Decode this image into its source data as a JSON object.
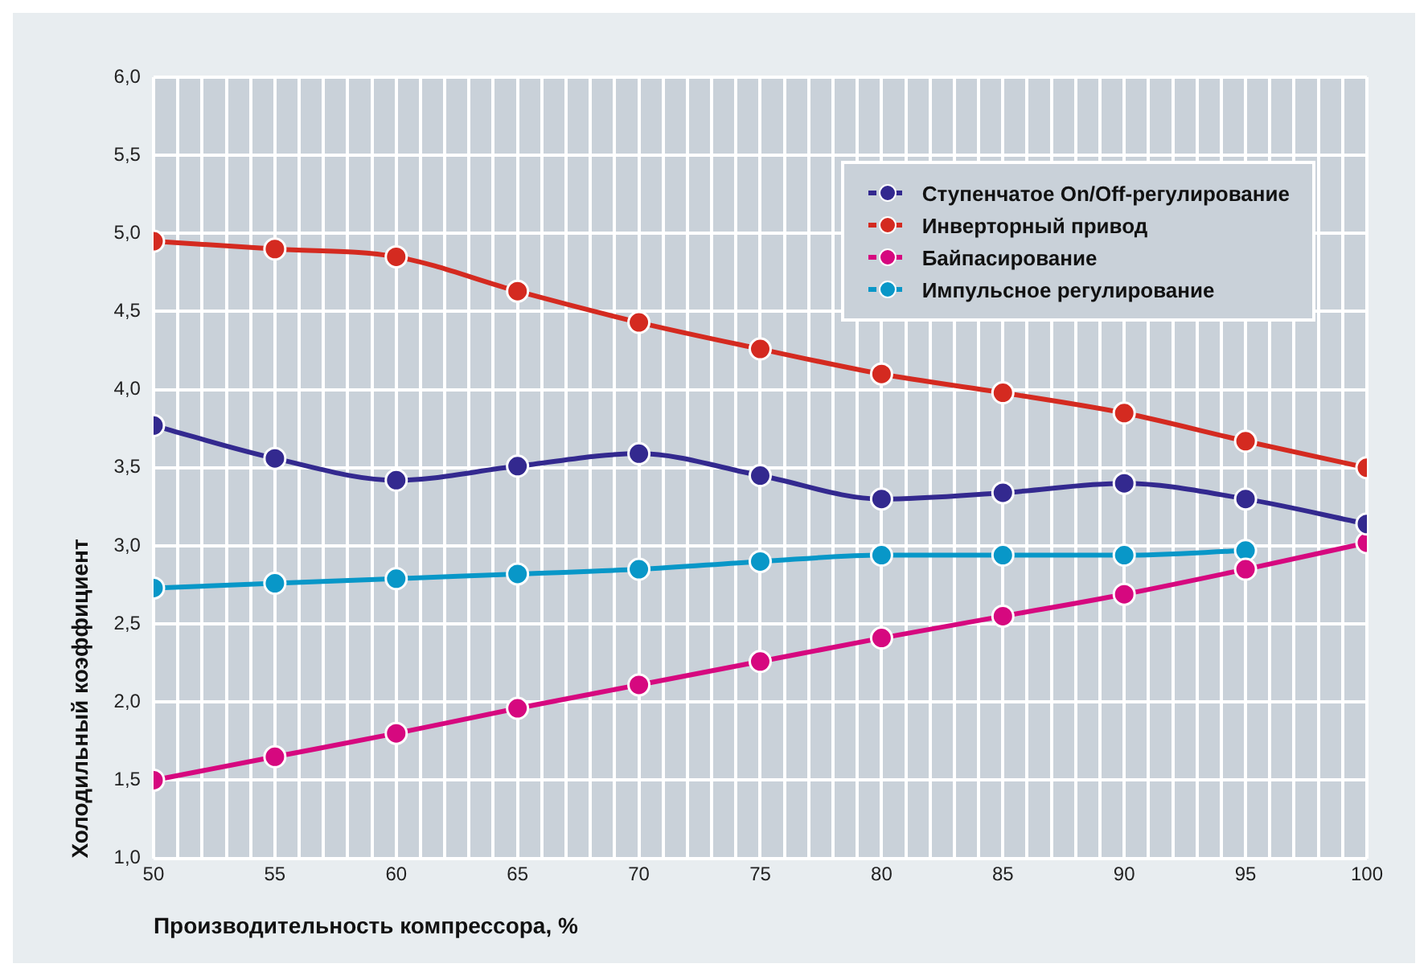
{
  "chart_data": {
    "type": "line",
    "xlabel": "Производительность компрессора, %",
    "ylabel": "Холодильный коэффициент",
    "x": [
      50,
      55,
      60,
      65,
      70,
      75,
      80,
      85,
      90,
      95,
      100
    ],
    "series": [
      {
        "name": "Ступенчатое On/Off-регулирование",
        "color": "#33298f",
        "values": [
          3.77,
          3.56,
          3.42,
          3.51,
          3.59,
          3.45,
          3.3,
          3.34,
          3.4,
          3.3,
          3.14
        ]
      },
      {
        "name": "Инверторный привод",
        "color": "#d42a20",
        "values": [
          4.95,
          4.9,
          4.85,
          4.63,
          4.43,
          4.26,
          4.1,
          3.98,
          3.85,
          3.67,
          3.5
        ]
      },
      {
        "name": "Байпасирование",
        "color": "#d6087f",
        "values": [
          1.5,
          1.65,
          1.8,
          1.96,
          2.11,
          2.26,
          2.41,
          2.55,
          2.69,
          2.85,
          3.02
        ]
      },
      {
        "name": "Импульсное регулирование",
        "color": "#0897c8",
        "values": [
          2.73,
          2.76,
          2.79,
          2.82,
          2.85,
          2.9,
          2.94,
          2.94,
          2.94,
          2.97,
          null
        ]
      }
    ],
    "xlim": [
      50,
      100
    ],
    "xticks": [
      50,
      {
        "value": 51,
        "label": null
      },
      {
        "value": 52,
        "label": null
      },
      {
        "value": 53,
        "label": null
      },
      {
        "value": 54,
        "label": null
      },
      55,
      {
        "value": 56,
        "label": null
      },
      {
        "value": 57,
        "label": null
      },
      {
        "value": 58,
        "label": null
      },
      {
        "value": 59,
        "label": null
      },
      60,
      {
        "value": 61,
        "label": null
      },
      {
        "value": 62,
        "label": null
      },
      {
        "value": 63,
        "label": null
      },
      {
        "value": 64,
        "label": null
      },
      65,
      {
        "value": 66,
        "label": null
      },
      {
        "value": 67,
        "label": null
      },
      {
        "value": 68,
        "label": null
      },
      {
        "value": 69,
        "label": null
      },
      70,
      {
        "value": 71,
        "label": null
      },
      {
        "value": 72,
        "label": null
      },
      {
        "value": 73,
        "label": null
      },
      {
        "value": 74,
        "label": null
      },
      75,
      {
        "value": 76,
        "label": null
      },
      {
        "value": 77,
        "label": null
      },
      {
        "value": 78,
        "label": null
      },
      {
        "value": 79,
        "label": null
      },
      80,
      {
        "value": 81,
        "label": null
      },
      {
        "value": 82,
        "label": null
      },
      {
        "value": 83,
        "label": null
      },
      {
        "value": 84,
        "label": null
      },
      85,
      {
        "value": 86,
        "label": null
      },
      {
        "value": 87,
        "label": null
      },
      {
        "value": 88,
        "label": null
      },
      {
        "value": 89,
        "label": null
      },
      90,
      {
        "value": 91,
        "label": null
      },
      {
        "value": 92,
        "label": null
      },
      {
        "value": 93,
        "label": null
      },
      {
        "value": 94,
        "label": null
      },
      95,
      {
        "value": 96,
        "label": null
      },
      {
        "value": 97,
        "label": null
      },
      {
        "value": 98,
        "label": null
      },
      {
        "value": 99,
        "label": null
      },
      100
    ],
    "ylim": [
      1,
      6
    ],
    "yticks": [
      {
        "value": 1,
        "label": "1,0"
      },
      {
        "value": 1.5,
        "label": "1,5"
      },
      {
        "value": 2,
        "label": "2,0"
      },
      {
        "value": 2.5,
        "label": "2,5"
      },
      {
        "value": 3,
        "label": "3,0"
      },
      {
        "value": 3.5,
        "label": "3,5"
      },
      {
        "value": 4,
        "label": "4,0"
      },
      {
        "value": 4.5,
        "label": "4,5"
      },
      {
        "value": 5,
        "label": "5,0"
      },
      {
        "value": 5.5,
        "label": "5,5"
      },
      {
        "value": 6,
        "label": "6,0"
      }
    ],
    "grid": true,
    "legend": "top right",
    "marker": "circle",
    "line_style": "solid"
  }
}
